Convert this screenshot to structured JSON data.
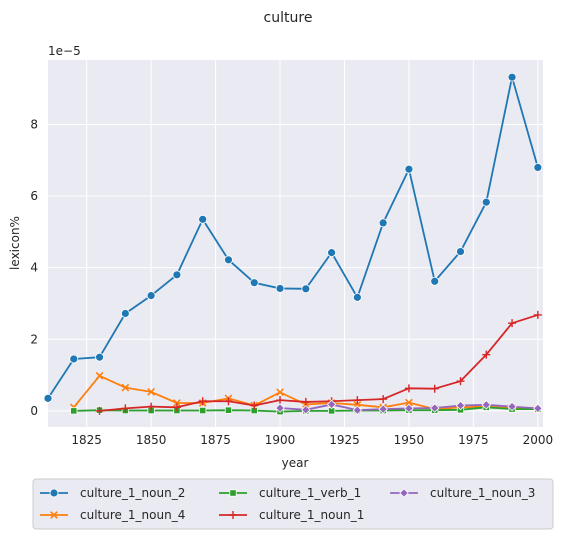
{
  "chart_data": {
    "type": "line",
    "title": "culture",
    "xlabel": "year",
    "ylabel": "lexicon%",
    "y_multiplier_label": "1e−5",
    "xlim": [
      1810,
      2002
    ],
    "ylim": [
      -0.45,
      9.8
    ],
    "x_ticks": [
      1825,
      1850,
      1875,
      1900,
      1925,
      1950,
      1975,
      2000
    ],
    "x_tick_labels": [
      "1825",
      "1850",
      "1875",
      "1900",
      "1925",
      "1950",
      "1975",
      "2000"
    ],
    "y_ticks": [
      0,
      2,
      4,
      6,
      8
    ],
    "y_tick_labels": [
      "0",
      "2",
      "4",
      "6",
      "8"
    ],
    "grid": true,
    "legend_placement": "bottom-center",
    "series": [
      {
        "name": "culture_1_noun_2",
        "color": "#1f77b4",
        "marker": "circle",
        "x": [
          1810,
          1820,
          1830,
          1840,
          1850,
          1860,
          1870,
          1880,
          1890,
          1900,
          1910,
          1920,
          1930,
          1940,
          1950,
          1960,
          1970,
          1980,
          1990,
          2000
        ],
        "y": [
          0.35,
          1.45,
          1.5,
          2.72,
          3.22,
          3.8,
          5.35,
          4.22,
          3.58,
          3.42,
          3.41,
          4.42,
          3.17,
          5.25,
          6.75,
          3.62,
          4.45,
          5.83,
          9.32,
          6.8
        ]
      },
      {
        "name": "culture_1_noun_4",
        "color": "#ff7f0e",
        "marker": "x",
        "x": [
          1820,
          1830,
          1840,
          1850,
          1860,
          1870,
          1880,
          1890,
          1900,
          1910,
          1920,
          1930,
          1940,
          1950,
          1960,
          1970,
          1980,
          1990,
          2000
        ],
        "y": [
          0.1,
          0.98,
          0.65,
          0.53,
          0.22,
          0.22,
          0.35,
          0.15,
          0.52,
          0.18,
          0.22,
          0.17,
          0.1,
          0.23,
          0.05,
          0.1,
          0.12,
          0.08,
          0.05
        ]
      },
      {
        "name": "culture_1_verb_1",
        "color": "#2ca02c",
        "marker": "square",
        "x": [
          1820,
          1830,
          1840,
          1850,
          1860,
          1870,
          1880,
          1890,
          1900,
          1910,
          1920,
          1930,
          1940,
          1950,
          1960,
          1970,
          1980,
          1990,
          2000
        ],
        "y": [
          0.0,
          0.02,
          0.01,
          0.01,
          0.01,
          0.01,
          0.02,
          0.01,
          -0.02,
          0.0,
          0.0,
          0.01,
          0.01,
          0.02,
          0.02,
          0.03,
          0.1,
          0.05,
          0.05
        ]
      },
      {
        "name": "culture_1_noun_1",
        "color": "#d62728",
        "marker": "plus",
        "x": [
          1830,
          1840,
          1850,
          1860,
          1870,
          1880,
          1890,
          1900,
          1910,
          1920,
          1930,
          1940,
          1950,
          1960,
          1970,
          1980,
          1990,
          2000
        ],
        "y": [
          0.0,
          0.07,
          0.12,
          0.1,
          0.27,
          0.27,
          0.15,
          0.3,
          0.25,
          0.27,
          0.3,
          0.33,
          0.63,
          0.62,
          0.83,
          1.57,
          2.45,
          2.68
        ]
      },
      {
        "name": "culture_1_noun_3",
        "color": "#9467bd",
        "marker": "diamond",
        "x": [
          1900,
          1910,
          1920,
          1930,
          1940,
          1950,
          1960,
          1970,
          1980,
          1990,
          2000
        ],
        "y": [
          0.08,
          0.03,
          0.18,
          0.02,
          0.05,
          0.07,
          0.08,
          0.15,
          0.17,
          0.12,
          0.07
        ]
      }
    ]
  }
}
